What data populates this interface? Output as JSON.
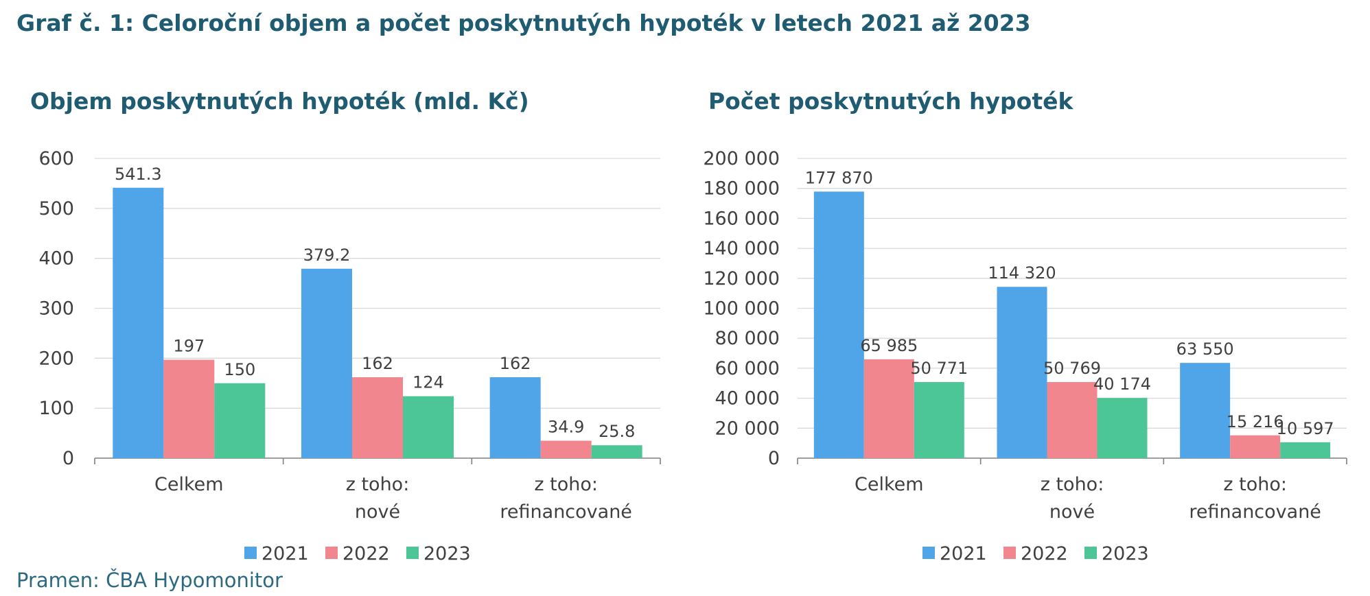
{
  "title": "Graf č. 1: Celoroční objem a počet poskytnutých hypoték v letech 2021 až 2023",
  "source": "Pramen: ČBA Hypomonitor",
  "colors": {
    "2021": "#4FA5E8",
    "2022": "#F2868F",
    "2023": "#4CC696",
    "title": "#1F5C72"
  },
  "chart_data": [
    {
      "type": "bar",
      "title": "Objem poskytnutých hypoték (mld. Kč)",
      "categories": [
        [
          "Celkem"
        ],
        [
          "z toho:",
          "nové"
        ],
        [
          "z toho:",
          "refinancované"
        ]
      ],
      "series": [
        {
          "name": "2021",
          "values": [
            541.3,
            379.2,
            162
          ],
          "labels": [
            "541.3",
            "379.2",
            "162"
          ]
        },
        {
          "name": "2022",
          "values": [
            197,
            162,
            34.9
          ],
          "labels": [
            "197",
            "162",
            "34.9"
          ]
        },
        {
          "name": "2023",
          "values": [
            150,
            124,
            25.8
          ],
          "labels": [
            "150",
            "124",
            "25.8"
          ]
        }
      ],
      "ylim": [
        0,
        600
      ],
      "yticks": [
        0,
        100,
        200,
        300,
        400,
        500,
        600
      ],
      "ytick_labels": [
        "0",
        "100",
        "200",
        "300",
        "400",
        "500",
        "600"
      ],
      "grid": true,
      "legend": "bottom"
    },
    {
      "type": "bar",
      "title": "Počet poskytnutých hypoték",
      "categories": [
        [
          "Celkem"
        ],
        [
          "z toho:",
          "nové"
        ],
        [
          "z toho:",
          "refinancované"
        ]
      ],
      "series": [
        {
          "name": "2021",
          "values": [
            177870,
            114320,
            63550
          ],
          "labels": [
            "177 870",
            "114 320",
            "63 550"
          ]
        },
        {
          "name": "2022",
          "values": [
            65985,
            50769,
            15216
          ],
          "labels": [
            "65 985",
            "50 769",
            "15 216"
          ]
        },
        {
          "name": "2023",
          "values": [
            50771,
            40174,
            10597
          ],
          "labels": [
            "50 771",
            "40 174",
            "10 597"
          ]
        }
      ],
      "ylim": [
        0,
        200000
      ],
      "yticks": [
        0,
        20000,
        40000,
        60000,
        80000,
        100000,
        120000,
        140000,
        160000,
        180000,
        200000
      ],
      "ytick_labels": [
        "0",
        "20 000",
        "40 000",
        "60 000",
        "80 000",
        "100 000",
        "120 000",
        "140 000",
        "160 000",
        "180 000",
        "200 000"
      ],
      "grid": true,
      "legend": "bottom"
    }
  ]
}
